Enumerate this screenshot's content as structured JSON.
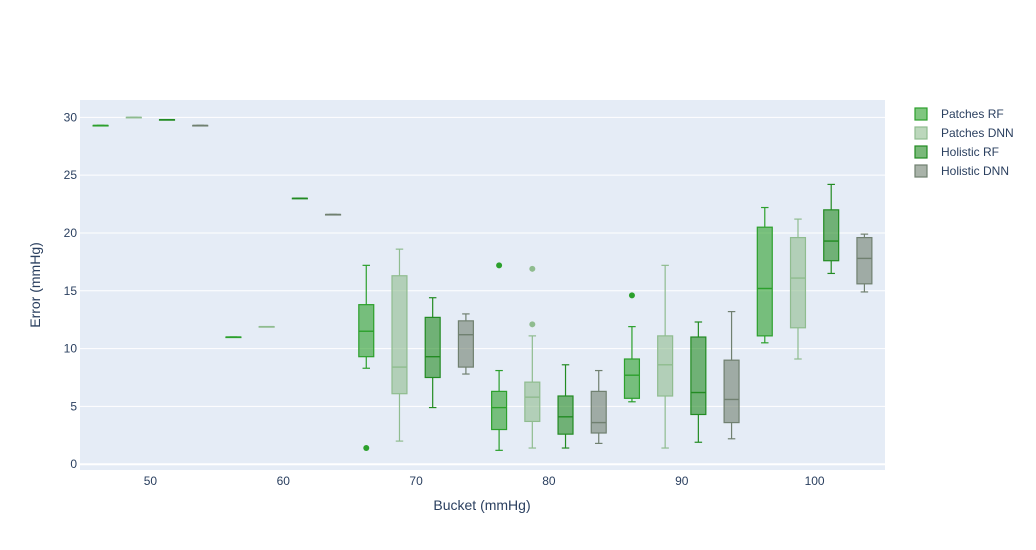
{
  "chart_data": {
    "type": "box",
    "xlabel": "Bucket (mmHg)",
    "ylabel": "Error (mmHg)",
    "ylim": [
      -0.5,
      31.5
    ],
    "xlim": [
      44.7,
      105.3
    ],
    "y_ticks": [
      0,
      5,
      10,
      15,
      20,
      25,
      30
    ],
    "x_ticks": [
      50,
      60,
      70,
      80,
      90,
      100
    ],
    "legend_position": "top-right",
    "grid": true,
    "series": [
      {
        "name": "Patches RF",
        "color": "#2ca02c",
        "boxes": [
          {
            "x": 50,
            "min": 29.3,
            "q1": 29.3,
            "median": 29.3,
            "q3": 29.3,
            "max": 29.3,
            "outliers": []
          },
          {
            "x": 60,
            "min": 11.0,
            "q1": 11.0,
            "median": 11.0,
            "q3": 11.0,
            "max": 11.0,
            "outliers": []
          },
          {
            "x": 70,
            "min": 8.3,
            "q1": 9.3,
            "median": 11.5,
            "q3": 13.8,
            "max": 17.2,
            "outliers": [
              1.4
            ]
          },
          {
            "x": 80,
            "min": 1.2,
            "q1": 3.0,
            "median": 4.9,
            "q3": 6.3,
            "max": 8.1,
            "outliers": [
              17.2
            ]
          },
          {
            "x": 90,
            "min": 5.4,
            "q1": 5.7,
            "median": 7.7,
            "q3": 9.1,
            "max": 11.9,
            "outliers": [
              14.6
            ]
          },
          {
            "x": 100,
            "min": 10.5,
            "q1": 11.1,
            "median": 15.2,
            "q3": 20.5,
            "max": 22.2,
            "outliers": []
          }
        ]
      },
      {
        "name": "Patches DNN",
        "color": "#8fbc8f",
        "boxes": [
          {
            "x": 50,
            "min": 30.0,
            "q1": 30.0,
            "median": 30.0,
            "q3": 30.0,
            "max": 30.0,
            "outliers": []
          },
          {
            "x": 60,
            "min": 11.9,
            "q1": 11.9,
            "median": 11.9,
            "q3": 11.9,
            "max": 11.9,
            "outliers": []
          },
          {
            "x": 70,
            "min": 2.0,
            "q1": 6.1,
            "median": 8.4,
            "q3": 16.3,
            "max": 18.6,
            "outliers": []
          },
          {
            "x": 80,
            "min": 1.4,
            "q1": 3.7,
            "median": 5.8,
            "q3": 7.1,
            "max": 11.1,
            "outliers": [
              12.1,
              16.9
            ]
          },
          {
            "x": 90,
            "min": 1.4,
            "q1": 5.9,
            "median": 8.6,
            "q3": 11.1,
            "max": 17.2,
            "outliers": []
          },
          {
            "x": 100,
            "min": 9.1,
            "q1": 11.8,
            "median": 16.1,
            "q3": 19.6,
            "max": 21.2,
            "outliers": []
          }
        ]
      },
      {
        "name": "Holistic RF",
        "color": "#228b22",
        "boxes": [
          {
            "x": 50,
            "min": 29.8,
            "q1": 29.8,
            "median": 29.8,
            "q3": 29.8,
            "max": 29.8,
            "outliers": []
          },
          {
            "x": 60,
            "min": 23.0,
            "q1": 23.0,
            "median": 23.0,
            "q3": 23.0,
            "max": 23.0,
            "outliers": []
          },
          {
            "x": 70,
            "min": 4.9,
            "q1": 7.5,
            "median": 9.3,
            "q3": 12.7,
            "max": 14.4,
            "outliers": []
          },
          {
            "x": 80,
            "min": 1.4,
            "q1": 2.6,
            "median": 4.1,
            "q3": 5.9,
            "max": 8.6,
            "outliers": []
          },
          {
            "x": 90,
            "min": 1.9,
            "q1": 4.3,
            "median": 6.2,
            "q3": 11.0,
            "max": 12.3,
            "outliers": []
          },
          {
            "x": 100,
            "min": 16.5,
            "q1": 17.6,
            "median": 19.3,
            "q3": 22.0,
            "max": 24.2,
            "outliers": []
          }
        ]
      },
      {
        "name": "Holistic DNN",
        "color": "#708070",
        "boxes": [
          {
            "x": 50,
            "min": 29.3,
            "q1": 29.3,
            "median": 29.3,
            "q3": 29.3,
            "max": 29.3,
            "outliers": []
          },
          {
            "x": 60,
            "min": 21.6,
            "q1": 21.6,
            "median": 21.6,
            "q3": 21.6,
            "max": 21.6,
            "outliers": []
          },
          {
            "x": 70,
            "min": 7.8,
            "q1": 8.4,
            "median": 11.2,
            "q3": 12.4,
            "max": 13.0,
            "outliers": []
          },
          {
            "x": 80,
            "min": 1.8,
            "q1": 2.7,
            "median": 3.6,
            "q3": 6.3,
            "max": 8.1,
            "outliers": []
          },
          {
            "x": 90,
            "min": 2.2,
            "q1": 3.6,
            "median": 5.6,
            "q3": 9.0,
            "max": 13.2,
            "outliers": []
          },
          {
            "x": 100,
            "min": 14.9,
            "q1": 15.6,
            "median": 17.8,
            "q3": 19.6,
            "max": 19.9,
            "outliers": []
          }
        ]
      }
    ]
  }
}
